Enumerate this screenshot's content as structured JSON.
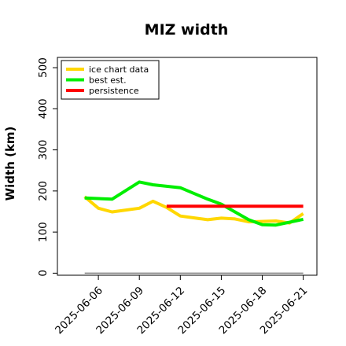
{
  "chart_data": {
    "type": "line",
    "title": "MIZ width",
    "xlabel": "",
    "ylabel": "Width (km)",
    "x": [
      "2025-06-05",
      "2025-06-06",
      "2025-06-07",
      "2025-06-08",
      "2025-06-09",
      "2025-06-10",
      "2025-06-11",
      "2025-06-12",
      "2025-06-13",
      "2025-06-14",
      "2025-06-15",
      "2025-06-16",
      "2025-06-17",
      "2025-06-18",
      "2025-06-19",
      "2025-06-20",
      "2025-06-21"
    ],
    "xticks": [
      "2025-06-06",
      "2025-06-09",
      "2025-06-12",
      "2025-06-15",
      "2025-06-18",
      "2025-06-21"
    ],
    "xlim": [
      "2025-06-03",
      "2025-06-22"
    ],
    "yticks": [
      0,
      100,
      200,
      300,
      400,
      500
    ],
    "ylim": [
      -5,
      525
    ],
    "legend_position": "top-left",
    "grid": false,
    "series": [
      {
        "name": "ice chart data",
        "color": "#FFD700",
        "x": [
          "2025-06-05",
          "2025-06-06",
          "2025-06-07",
          "2025-06-09",
          "2025-06-10",
          "2025-06-11",
          "2025-06-12",
          "2025-06-14",
          "2025-06-15",
          "2025-06-16",
          "2025-06-17",
          "2025-06-19",
          "2025-06-20",
          "2025-06-21"
        ],
        "values": [
          186,
          158,
          149,
          158,
          175,
          160,
          139,
          130,
          134,
          132,
          125,
          127,
          122,
          145
        ]
      },
      {
        "name": "best est.",
        "color": "#00EE00",
        "x": [
          "2025-06-05",
          "2025-06-07",
          "2025-06-09",
          "2025-06-10",
          "2025-06-12",
          "2025-06-14",
          "2025-06-15",
          "2025-06-17",
          "2025-06-18",
          "2025-06-19",
          "2025-06-21"
        ],
        "values": [
          183,
          180,
          222,
          215,
          208,
          180,
          168,
          130,
          118,
          117,
          131
        ]
      },
      {
        "name": "persistence",
        "color": "#FF0000",
        "x": [
          "2025-06-11",
          "2025-06-21"
        ],
        "values": [
          163,
          163
        ]
      },
      {
        "name": "",
        "color": "#808080",
        "x": [
          "2025-06-05",
          "2025-06-21"
        ],
        "values": [
          0,
          0
        ]
      }
    ]
  }
}
